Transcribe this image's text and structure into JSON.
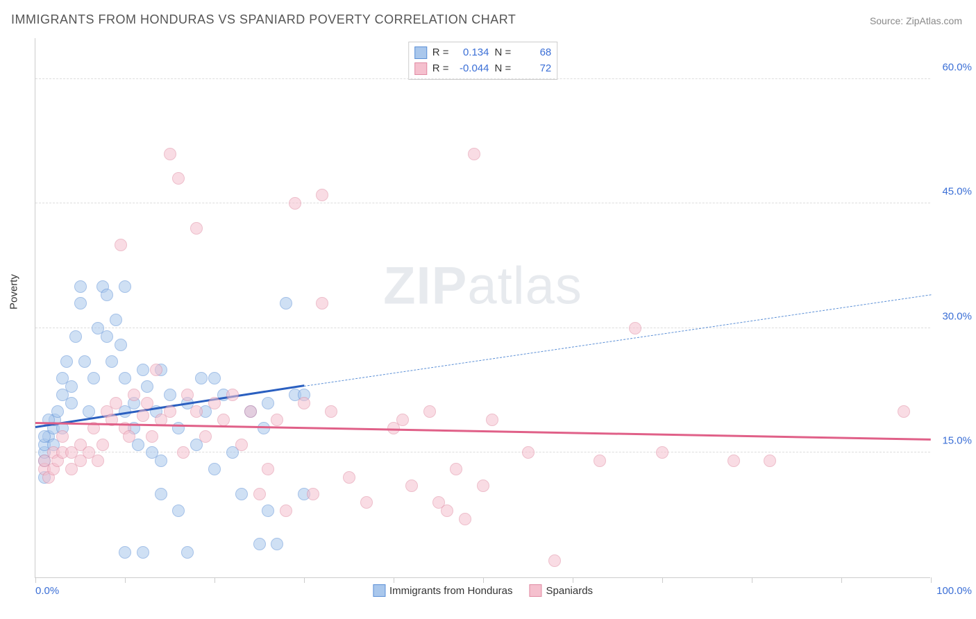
{
  "title": "IMMIGRANTS FROM HONDURAS VS SPANIARD POVERTY CORRELATION CHART",
  "source": "Source: ZipAtlas.com",
  "watermark_bold": "ZIP",
  "watermark_rest": "atlas",
  "y_axis_title": "Poverty",
  "chart": {
    "type": "scatter",
    "xlim": [
      0,
      100
    ],
    "ylim": [
      0,
      65
    ],
    "x_tick_positions": [
      0,
      10,
      20,
      30,
      40,
      50,
      60,
      70,
      80,
      90,
      100
    ],
    "x_tick_labels_shown": {
      "0": "0.0%",
      "100": "100.0%"
    },
    "y_gridlines": [
      15,
      30,
      45,
      60
    ],
    "y_tick_labels": {
      "15": "15.0%",
      "30": "30.0%",
      "45": "45.0%",
      "60": "60.0%"
    },
    "background_color": "#ffffff",
    "grid_color": "#dddddd",
    "axis_color": "#cccccc",
    "tick_label_color": "#3b6fd6",
    "point_radius": 9,
    "point_opacity": 0.55,
    "series": [
      {
        "name": "Immigrants from Honduras",
        "legend_label": "Immigrants from Honduras",
        "color_fill": "#a9c7ec",
        "color_stroke": "#5b8fd6",
        "R": "0.134",
        "N": "68",
        "trend": {
          "x1": 0,
          "y1": 18.0,
          "x2": 30,
          "y2": 23.0,
          "solid": true,
          "color": "#2a5fc0",
          "width": 3
        },
        "trend_extrapolate": {
          "x1": 30,
          "y1": 23.0,
          "x2": 100,
          "y2": 34.0,
          "color": "#5b8fd6",
          "width": 1.5,
          "dash": true
        },
        "points": [
          [
            1,
            12
          ],
          [
            1,
            14
          ],
          [
            1,
            15
          ],
          [
            1,
            16
          ],
          [
            1.5,
            17
          ],
          [
            2,
            16
          ],
          [
            2,
            18
          ],
          [
            2.2,
            19
          ],
          [
            2.5,
            20
          ],
          [
            3,
            18
          ],
          [
            1,
            17
          ],
          [
            1.5,
            19
          ],
          [
            3,
            22
          ],
          [
            3,
            24
          ],
          [
            3.5,
            26
          ],
          [
            4,
            21
          ],
          [
            4,
            23
          ],
          [
            4.5,
            29
          ],
          [
            5,
            33
          ],
          [
            5,
            35
          ],
          [
            5.5,
            26
          ],
          [
            6,
            20
          ],
          [
            6.5,
            24
          ],
          [
            7,
            30
          ],
          [
            7.5,
            35
          ],
          [
            8,
            29
          ],
          [
            8,
            34
          ],
          [
            8.5,
            26
          ],
          [
            9,
            31
          ],
          [
            9.5,
            28
          ],
          [
            10,
            20
          ],
          [
            10,
            24
          ],
          [
            10,
            35
          ],
          [
            11,
            18
          ],
          [
            11,
            21
          ],
          [
            11.5,
            16
          ],
          [
            12,
            25
          ],
          [
            12.5,
            23
          ],
          [
            13,
            15
          ],
          [
            13.5,
            20
          ],
          [
            14,
            10
          ],
          [
            14,
            14
          ],
          [
            14,
            25
          ],
          [
            15,
            22
          ],
          [
            16,
            18
          ],
          [
            16,
            8
          ],
          [
            17,
            21
          ],
          [
            18,
            16
          ],
          [
            18.5,
            24
          ],
          [
            19,
            20
          ],
          [
            20,
            24
          ],
          [
            20,
            13
          ],
          [
            21,
            22
          ],
          [
            22,
            15
          ],
          [
            23,
            10
          ],
          [
            24,
            20
          ],
          [
            25,
            4
          ],
          [
            25.5,
            18
          ],
          [
            26,
            21
          ],
          [
            27,
            4
          ],
          [
            28,
            33
          ],
          [
            29,
            22
          ],
          [
            30,
            22
          ],
          [
            30,
            10
          ],
          [
            26,
            8
          ],
          [
            17,
            3
          ],
          [
            12,
            3
          ],
          [
            10,
            3
          ]
        ]
      },
      {
        "name": "Spaniards",
        "legend_label": "Spaniards",
        "color_fill": "#f5c0ce",
        "color_stroke": "#e08aa2",
        "R": "-0.044",
        "N": "72",
        "trend": {
          "x1": 0,
          "y1": 18.5,
          "x2": 100,
          "y2": 16.5,
          "solid": true,
          "color": "#e06088",
          "width": 3
        },
        "points": [
          [
            1,
            13
          ],
          [
            1,
            14
          ],
          [
            1.5,
            12
          ],
          [
            2,
            13
          ],
          [
            2,
            15
          ],
          [
            2.5,
            14
          ],
          [
            3,
            15
          ],
          [
            3,
            17
          ],
          [
            4,
            13
          ],
          [
            4,
            15
          ],
          [
            5,
            14
          ],
          [
            5,
            16
          ],
          [
            6,
            15
          ],
          [
            6.5,
            18
          ],
          [
            7,
            14
          ],
          [
            7.5,
            16
          ],
          [
            8,
            20
          ],
          [
            8.5,
            19
          ],
          [
            9,
            21
          ],
          [
            9.5,
            40
          ],
          [
            10,
            18
          ],
          [
            10.5,
            17
          ],
          [
            11,
            22
          ],
          [
            12,
            19.5
          ],
          [
            12.5,
            21
          ],
          [
            13,
            17
          ],
          [
            13.5,
            25
          ],
          [
            14,
            19
          ],
          [
            15,
            51
          ],
          [
            15,
            20
          ],
          [
            16,
            48
          ],
          [
            16.5,
            15
          ],
          [
            17,
            22
          ],
          [
            18,
            20
          ],
          [
            18,
            42
          ],
          [
            19,
            17
          ],
          [
            20,
            21
          ],
          [
            21,
            19
          ],
          [
            22,
            22
          ],
          [
            23,
            16
          ],
          [
            24,
            20
          ],
          [
            25,
            10
          ],
          [
            26,
            13
          ],
          [
            27,
            19
          ],
          [
            28,
            8
          ],
          [
            29,
            45
          ],
          [
            30,
            21
          ],
          [
            31,
            10
          ],
          [
            32,
            46
          ],
          [
            32,
            33
          ],
          [
            33,
            20
          ],
          [
            35,
            12
          ],
          [
            37,
            9
          ],
          [
            40,
            18
          ],
          [
            41,
            19
          ],
          [
            42,
            11
          ],
          [
            44,
            20
          ],
          [
            45,
            9
          ],
          [
            46,
            8
          ],
          [
            47,
            13
          ],
          [
            48,
            7
          ],
          [
            49,
            51
          ],
          [
            50,
            11
          ],
          [
            51,
            19
          ],
          [
            55,
            15
          ],
          [
            58,
            2
          ],
          [
            63,
            14
          ],
          [
            67,
            30
          ],
          [
            70,
            15
          ],
          [
            78,
            14
          ],
          [
            82,
            14
          ],
          [
            97,
            20
          ]
        ]
      }
    ]
  },
  "legend_top_labels": {
    "R": "R =",
    "N": "N ="
  }
}
